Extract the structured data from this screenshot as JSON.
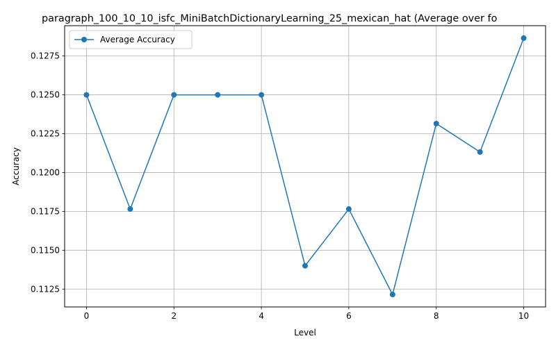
{
  "chart_data": {
    "type": "line",
    "title": "paragraph_100_10_10_isfc_MiniBatchDictionaryLearning_25_mexican_hat (Average over fo",
    "xlabel": "Level",
    "ylabel": "Accuracy",
    "x": [
      0,
      1,
      2,
      3,
      4,
      5,
      6,
      7,
      8,
      9,
      10
    ],
    "series": [
      {
        "name": "Average Accuracy",
        "values": [
          0.125,
          0.11765,
          0.125,
          0.125,
          0.125,
          0.114,
          0.11765,
          0.11215,
          0.12315,
          0.12132,
          0.12865
        ],
        "color": "#1f77b4",
        "marker": "circle"
      }
    ],
    "xlim": [
      -0.5,
      10.5
    ],
    "ylim": [
      0.11135,
      0.12945
    ],
    "xticks": [
      0,
      2,
      4,
      6,
      8,
      10
    ],
    "xtick_labels": [
      "0",
      "2",
      "4",
      "6",
      "8",
      "10"
    ],
    "yticks": [
      0.1125,
      0.115,
      0.1175,
      0.12,
      0.1225,
      0.125,
      0.1275
    ],
    "ytick_labels": [
      "0.1125",
      "0.1150",
      "0.1175",
      "0.1200",
      "0.1225",
      "0.1250",
      "0.1275"
    ],
    "grid": true,
    "grid_color": "#b0b0b0",
    "legend_position": "upper-left"
  }
}
